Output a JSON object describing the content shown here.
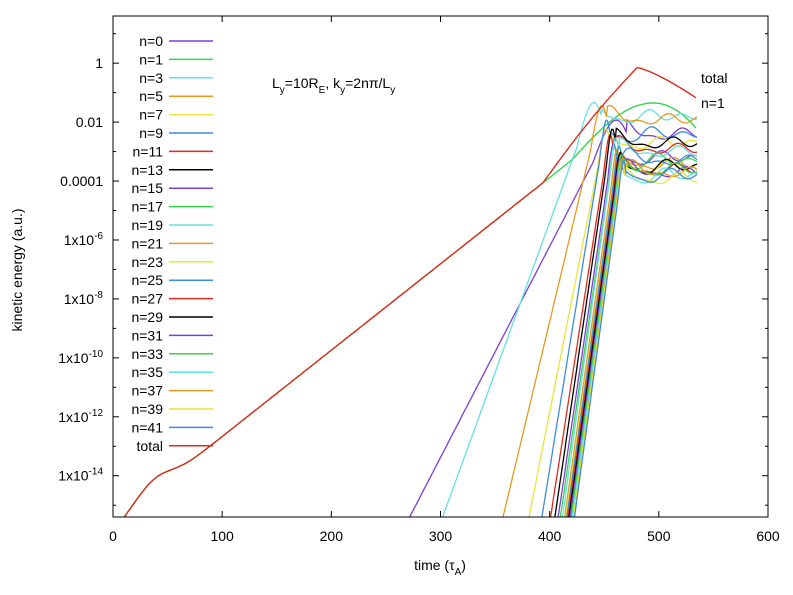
{
  "chart_data": {
    "type": "line",
    "title": "",
    "annotation_parts": [
      "L",
      "y",
      "=10R",
      "E",
      ", k",
      "y",
      "=2nπ/L",
      "y"
    ],
    "xlabel_parts": [
      "time (τ",
      "A",
      ")"
    ],
    "ylabel": "kinetic energy (a.u.)",
    "xlim": [
      0,
      600
    ],
    "ylim_log10": [
      -15.4,
      1.6
    ],
    "scale_y": "log",
    "x_ticks": [
      0,
      100,
      200,
      300,
      400,
      500,
      600
    ],
    "x_tick_labels": [
      "0",
      "100",
      "200",
      "300",
      "400",
      "500",
      "600"
    ],
    "y_ticks": [
      {
        "log": 0,
        "plain": "1"
      },
      {
        "log": -2,
        "plain": "0.01"
      },
      {
        "log": -4,
        "plain": "0.0001"
      },
      {
        "log": -6,
        "base": "1x10",
        "exp": "-6"
      },
      {
        "log": -8,
        "base": "1x10",
        "exp": "-8"
      },
      {
        "log": -10,
        "base": "1x10",
        "exp": "-10"
      },
      {
        "log": -12,
        "base": "1x10",
        "exp": "-12"
      },
      {
        "log": -14,
        "base": "1x10",
        "exp": "-14"
      }
    ],
    "legend_position": "top-left",
    "end_labels": [
      "total",
      "n=1"
    ],
    "series": [
      {
        "name": "n=0",
        "color": "#7b3fd6",
        "onset": 269,
        "rise_end": 470,
        "sat": -2.4,
        "phase": 1.3
      },
      {
        "name": "n=1",
        "color": "#35d44a",
        "onset": -10,
        "rise_end": 470,
        "sat": -1.35,
        "phase": 0.0
      },
      {
        "name": "n=3",
        "color": "#63e0e3",
        "onset": 300,
        "rise_end": 447,
        "sat": -1.8,
        "phase": 2.1
      },
      {
        "name": "n=5",
        "color": "#e49a1e",
        "onset": 356,
        "rise_end": 452,
        "sat": -1.9,
        "phase": 0.7
      },
      {
        "name": "n=7",
        "color": "#e7e43a",
        "onset": 380,
        "rise_end": 455,
        "sat": -2.7,
        "phase": 1.9
      },
      {
        "name": "n=9",
        "color": "#3b8be0",
        "onset": 392,
        "rise_end": 455,
        "sat": -2.4,
        "phase": 2.8
      },
      {
        "name": "n=11",
        "color": "#e02a1c",
        "onset": 400,
        "rise_end": 458,
        "sat": -2.9,
        "phase": 0.4
      },
      {
        "name": "n=13",
        "color": "#000000",
        "onset": 404,
        "rise_end": 460,
        "sat": -2.7,
        "phase": 1.1
      },
      {
        "name": "n=15",
        "color": "#7b3fd6",
        "onset": 407,
        "rise_end": 461,
        "sat": -3.2,
        "phase": 2.4
      },
      {
        "name": "n=17",
        "color": "#35d44a",
        "onset": 409,
        "rise_end": 462,
        "sat": -3.3,
        "phase": 3.0
      },
      {
        "name": "n=19",
        "color": "#63e0e3",
        "onset": 411,
        "rise_end": 463,
        "sat": -3.0,
        "phase": 0.9
      },
      {
        "name": "n=21",
        "color": "#e49a1e",
        "onset": 413,
        "rise_end": 464,
        "sat": -3.4,
        "phase": 1.6
      },
      {
        "name": "n=23",
        "color": "#e7e43a",
        "onset": 414,
        "rise_end": 465,
        "sat": -3.5,
        "phase": 2.2
      },
      {
        "name": "n=25",
        "color": "#3b8be0",
        "onset": 415,
        "rise_end": 466,
        "sat": -3.3,
        "phase": 0.2
      },
      {
        "name": "n=27",
        "color": "#e02a1c",
        "onset": 416,
        "rise_end": 466,
        "sat": -3.6,
        "phase": 1.4
      },
      {
        "name": "n=29",
        "color": "#000000",
        "onset": 417,
        "rise_end": 467,
        "sat": -3.5,
        "phase": 2.6
      },
      {
        "name": "n=31",
        "color": "#7b3fd6",
        "onset": 418,
        "rise_end": 467,
        "sat": -3.7,
        "phase": 0.6
      },
      {
        "name": "n=33",
        "color": "#35d44a",
        "onset": 419,
        "rise_end": 468,
        "sat": -3.6,
        "phase": 1.8
      },
      {
        "name": "n=35",
        "color": "#63e0e3",
        "onset": 420,
        "rise_end": 468,
        "sat": -3.8,
        "phase": 2.9
      },
      {
        "name": "n=37",
        "color": "#e49a1e",
        "onset": 421,
        "rise_end": 469,
        "sat": -3.7,
        "phase": 0.3
      },
      {
        "name": "n=39",
        "color": "#e7e43a",
        "onset": 421,
        "rise_end": 469,
        "sat": -3.9,
        "phase": 1.5
      },
      {
        "name": "n=41",
        "color": "#3b8be0",
        "onset": 422,
        "rise_end": 470,
        "sat": -3.8,
        "phase": 2.5
      },
      {
        "name": "total",
        "color": "#e02a1c",
        "onset": 0,
        "rise_end": 480,
        "sat": 0.0,
        "phase": 0.0
      }
    ]
  }
}
